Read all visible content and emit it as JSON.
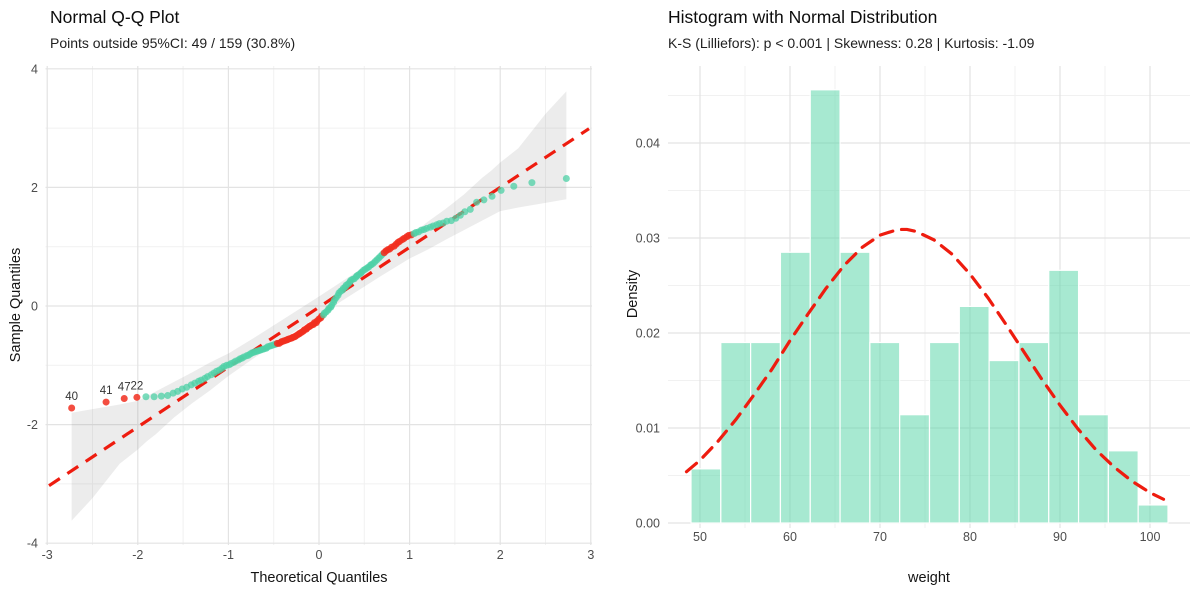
{
  "chart_data": [
    {
      "type": "scatter",
      "name": "qq-plot",
      "title": "Normal Q-Q Plot",
      "subtitle": "Points outside 95%CI: 49 / 159 (30.8%)",
      "xlabel": "Theoretical Quantiles",
      "ylabel": "Sample Quantiles",
      "xlim": [
        -3.05,
        3.05
      ],
      "ylim": [
        -4,
        4
      ],
      "x_ticks": [
        -3,
        -2,
        -1,
        0,
        1,
        2,
        3
      ],
      "y_ticks": [
        4,
        2,
        0,
        -2,
        -4
      ],
      "x_minor": [
        -2.5,
        -1.5,
        -0.5,
        0.5,
        1.5,
        2.5
      ],
      "y_minor": [
        -3,
        -1,
        1,
        3
      ],
      "n_total": 159,
      "n_outside": 49,
      "pct_outside": "30.8%",
      "ref_line": {
        "x1": -2.98,
        "y1": -3.03,
        "x2": 2.98,
        "y2": 2.99
      },
      "band": {
        "x": [
          -2.73,
          -2.5,
          -2.2,
          -2.0,
          -1.9,
          -1.8,
          -1.6,
          -1.4,
          -1.2,
          -1.0,
          -0.7,
          -0.4,
          0.0,
          0.4,
          0.7,
          1.0,
          1.2,
          1.4,
          1.6,
          1.8,
          1.9,
          2.0,
          2.2,
          2.5,
          2.73
        ],
        "upper": [
          -1.8,
          -1.74,
          -1.66,
          -1.6,
          -1.52,
          -1.44,
          -1.28,
          -1.12,
          -0.95,
          -0.8,
          -0.52,
          -0.23,
          0.16,
          0.56,
          0.86,
          1.18,
          1.42,
          1.64,
          1.88,
          2.16,
          2.28,
          2.42,
          2.66,
          3.24,
          3.62
        ],
        "lower": [
          -3.62,
          -3.24,
          -2.66,
          -2.42,
          -2.28,
          -2.16,
          -1.88,
          -1.64,
          -1.42,
          -1.18,
          -0.86,
          -0.56,
          -0.16,
          0.23,
          0.52,
          0.8,
          0.95,
          1.12,
          1.28,
          1.44,
          1.52,
          1.6,
          1.66,
          1.74,
          1.8
        ]
      },
      "outlier_labels": [
        {
          "id": "40",
          "x": -2.73,
          "y": -1.72
        },
        {
          "id": "41",
          "x": -2.35,
          "y": -1.62
        },
        {
          "id": "47",
          "x": -2.15,
          "y": -1.56
        },
        {
          "id": "22",
          "x": -2.01,
          "y": -1.54
        }
      ],
      "points": [
        [
          -2.73,
          -1.72,
          1
        ],
        [
          -2.35,
          -1.62,
          1
        ],
        [
          -2.15,
          -1.56,
          1
        ],
        [
          -2.01,
          -1.54,
          1
        ],
        [
          -1.91,
          -1.53,
          0
        ],
        [
          -1.82,
          -1.53,
          0
        ],
        [
          -1.74,
          -1.52,
          0
        ],
        [
          -1.67,
          -1.51,
          0
        ],
        [
          -1.61,
          -1.47,
          0
        ],
        [
          -1.56,
          -1.44,
          0
        ],
        [
          -1.51,
          -1.4,
          0
        ],
        [
          -1.46,
          -1.37,
          0
        ],
        [
          -1.41,
          -1.33,
          0
        ],
        [
          -1.37,
          -1.3,
          0
        ],
        [
          -1.33,
          -1.27,
          0
        ],
        [
          -1.3,
          -1.25,
          0
        ],
        [
          -1.26,
          -1.22,
          0
        ],
        [
          -1.23,
          -1.19,
          0
        ],
        [
          -1.19,
          -1.16,
          0
        ],
        [
          -1.16,
          -1.13,
          0
        ],
        [
          -1.13,
          -1.1,
          0
        ],
        [
          -1.1,
          -1.08,
          0
        ],
        [
          -1.07,
          -1.05,
          0
        ],
        [
          -1.05,
          -1.02,
          0
        ],
        [
          -1.02,
          -1.0,
          0
        ],
        [
          -0.99,
          -0.99,
          0
        ],
        [
          -0.97,
          -0.97,
          0
        ],
        [
          -0.94,
          -0.95,
          0
        ],
        [
          -0.92,
          -0.93,
          0
        ],
        [
          -0.89,
          -0.91,
          0
        ],
        [
          -0.87,
          -0.89,
          0
        ],
        [
          -0.85,
          -0.88,
          0
        ],
        [
          -0.83,
          -0.86,
          0
        ],
        [
          -0.8,
          -0.84,
          0
        ],
        [
          -0.78,
          -0.83,
          0
        ],
        [
          -0.76,
          -0.81,
          0
        ],
        [
          -0.74,
          -0.79,
          0
        ],
        [
          -0.72,
          -0.78,
          0
        ],
        [
          -0.7,
          -0.77,
          0
        ],
        [
          -0.68,
          -0.76,
          0
        ],
        [
          -0.66,
          -0.75,
          0
        ],
        [
          -0.64,
          -0.74,
          0
        ],
        [
          -0.62,
          -0.73,
          0
        ],
        [
          -0.6,
          -0.72,
          0
        ],
        [
          -0.58,
          -0.71,
          0
        ],
        [
          -0.57,
          -0.69,
          0
        ],
        [
          -0.55,
          -0.68,
          0
        ],
        [
          -0.53,
          -0.67,
          0
        ],
        [
          -0.51,
          -0.66,
          0
        ],
        [
          -0.49,
          -0.65,
          0
        ],
        [
          -0.47,
          -0.64,
          0
        ],
        [
          -0.46,
          -0.63,
          1
        ],
        [
          -0.44,
          -0.63,
          1
        ],
        [
          -0.42,
          -0.61,
          1
        ],
        [
          -0.41,
          -0.6,
          1
        ],
        [
          -0.39,
          -0.59,
          1
        ],
        [
          -0.37,
          -0.58,
          1
        ],
        [
          -0.35,
          -0.57,
          1
        ],
        [
          -0.34,
          -0.56,
          1
        ],
        [
          -0.32,
          -0.55,
          1
        ],
        [
          -0.3,
          -0.54,
          1
        ],
        [
          -0.29,
          -0.53,
          1
        ],
        [
          -0.27,
          -0.52,
          1
        ],
        [
          -0.26,
          -0.51,
          1
        ],
        [
          -0.24,
          -0.49,
          1
        ],
        [
          -0.22,
          -0.47,
          1
        ],
        [
          -0.21,
          -0.46,
          1
        ],
        [
          -0.19,
          -0.44,
          1
        ],
        [
          -0.17,
          -0.42,
          1
        ],
        [
          -0.16,
          -0.4,
          1
        ],
        [
          -0.14,
          -0.39,
          1
        ],
        [
          -0.13,
          -0.37,
          1
        ],
        [
          -0.11,
          -0.35,
          1
        ],
        [
          -0.1,
          -0.34,
          1
        ],
        [
          -0.08,
          -0.32,
          1
        ],
        [
          -0.06,
          -0.31,
          1
        ],
        [
          -0.05,
          -0.28,
          1
        ],
        [
          -0.03,
          -0.28,
          1
        ],
        [
          -0.02,
          -0.25,
          1
        ],
        [
          0.0,
          -0.22,
          1
        ],
        [
          0.02,
          -0.2,
          1
        ],
        [
          0.03,
          -0.17,
          1
        ],
        [
          0.05,
          -0.15,
          0
        ],
        [
          0.06,
          -0.12,
          0
        ],
        [
          0.08,
          -0.1,
          0
        ],
        [
          0.1,
          -0.07,
          0
        ],
        [
          0.11,
          -0.04,
          0
        ],
        [
          0.13,
          -0.02,
          0
        ],
        [
          0.14,
          0.01,
          0
        ],
        [
          0.16,
          0.06,
          0
        ],
        [
          0.17,
          0.1,
          0
        ],
        [
          0.19,
          0.14,
          0
        ],
        [
          0.21,
          0.18,
          0
        ],
        [
          0.22,
          0.22,
          0
        ],
        [
          0.24,
          0.25,
          0
        ],
        [
          0.26,
          0.27,
          0
        ],
        [
          0.27,
          0.3,
          0
        ],
        [
          0.29,
          0.32,
          0
        ],
        [
          0.3,
          0.35,
          0
        ],
        [
          0.32,
          0.37,
          0
        ],
        [
          0.34,
          0.4,
          0
        ],
        [
          0.35,
          0.43,
          0
        ],
        [
          0.37,
          0.45,
          0
        ],
        [
          0.39,
          0.46,
          0
        ],
        [
          0.41,
          0.49,
          0
        ],
        [
          0.42,
          0.51,
          0
        ],
        [
          0.44,
          0.53,
          0
        ],
        [
          0.46,
          0.55,
          0
        ],
        [
          0.47,
          0.57,
          0
        ],
        [
          0.49,
          0.6,
          0
        ],
        [
          0.51,
          0.62,
          0
        ],
        [
          0.53,
          0.64,
          0
        ],
        [
          0.55,
          0.66,
          0
        ],
        [
          0.57,
          0.69,
          0
        ],
        [
          0.58,
          0.7,
          0
        ],
        [
          0.6,
          0.72,
          0
        ],
        [
          0.62,
          0.75,
          0
        ],
        [
          0.64,
          0.78,
          0
        ],
        [
          0.66,
          0.81,
          0
        ],
        [
          0.68,
          0.84,
          0
        ],
        [
          0.7,
          0.87,
          0
        ],
        [
          0.72,
          0.9,
          1
        ],
        [
          0.74,
          0.93,
          1
        ],
        [
          0.76,
          0.95,
          1
        ],
        [
          0.78,
          0.96,
          1
        ],
        [
          0.8,
          0.99,
          1
        ],
        [
          0.83,
          1.01,
          1
        ],
        [
          0.85,
          1.04,
          1
        ],
        [
          0.87,
          1.07,
          1
        ],
        [
          0.89,
          1.09,
          1
        ],
        [
          0.92,
          1.12,
          1
        ],
        [
          0.94,
          1.14,
          1
        ],
        [
          0.97,
          1.17,
          1
        ],
        [
          0.99,
          1.19,
          1
        ],
        [
          1.02,
          1.2,
          1
        ],
        [
          1.05,
          1.22,
          0
        ],
        [
          1.07,
          1.24,
          0
        ],
        [
          1.1,
          1.25,
          0
        ],
        [
          1.13,
          1.28,
          0
        ],
        [
          1.16,
          1.29,
          0
        ],
        [
          1.19,
          1.31,
          0
        ],
        [
          1.23,
          1.33,
          0
        ],
        [
          1.26,
          1.35,
          0
        ],
        [
          1.3,
          1.37,
          0
        ],
        [
          1.33,
          1.39,
          0
        ],
        [
          1.37,
          1.4,
          0
        ],
        [
          1.41,
          1.43,
          0
        ],
        [
          1.46,
          1.44,
          0
        ],
        [
          1.51,
          1.48,
          0
        ],
        [
          1.56,
          1.53,
          0
        ],
        [
          1.61,
          1.59,
          0
        ],
        [
          1.67,
          1.63,
          0
        ],
        [
          1.74,
          1.75,
          0
        ],
        [
          1.82,
          1.79,
          0
        ],
        [
          1.91,
          1.85,
          0
        ],
        [
          2.01,
          1.95,
          0
        ],
        [
          2.15,
          2.02,
          0
        ],
        [
          2.35,
          2.08,
          0
        ],
        [
          2.73,
          2.15,
          0
        ]
      ],
      "colors": {
        "inside": "#4ED0A5",
        "outside": "#F12E1E",
        "line": "#EE1C0F",
        "band": "#7F7F7F"
      }
    },
    {
      "type": "bar",
      "name": "histogram",
      "title": "Histogram with Normal Distribution",
      "subtitle": "K-S (Lilliefors): p < 0.001 | Skewness: 0.28 | Kurtosis: -1.09",
      "stats": {
        "test": "K-S (Lilliefors)",
        "p_value": "p < 0.001",
        "skewness": "0.28",
        "kurtosis": "-1.09"
      },
      "xlabel": "weight",
      "ylabel": "Density",
      "x_ticks": [
        50,
        60,
        70,
        80,
        90,
        100
      ],
      "y_ticks": [
        0,
        0.01,
        0.02,
        0.03,
        0.04
      ],
      "y_tick_labels": [
        "0.00",
        "0.01",
        "0.02",
        "0.03",
        "0.04"
      ],
      "x_minor": [
        55,
        65,
        75,
        85,
        95
      ],
      "y_minor": [
        0.005,
        0.015,
        0.025,
        0.035,
        0.045
      ],
      "bin_start": 49,
      "bin_width": 3.3125,
      "counts": [
        3,
        10,
        10,
        15,
        24,
        15,
        10,
        6,
        10,
        12,
        9,
        10,
        14,
        6,
        4,
        1
      ],
      "densities": [
        0.0057,
        0.019,
        0.019,
        0.0285,
        0.0456,
        0.0285,
        0.019,
        0.0114,
        0.019,
        0.0228,
        0.0171,
        0.019,
        0.0266,
        0.0114,
        0.0076,
        0.0019
      ],
      "normal_fit": {
        "mean": 72.6,
        "sd": 12.87,
        "peak_density": 0.0309
      },
      "curve": {
        "x": [
          48.5,
          50,
          52,
          54,
          56,
          58,
          60,
          62,
          64,
          66,
          68,
          70,
          72,
          73,
          74,
          76,
          78,
          80,
          82,
          84,
          86,
          88,
          90,
          92,
          94,
          96,
          98,
          100,
          101.5
        ],
        "y": [
          0.0054,
          0.0066,
          0.0086,
          0.0109,
          0.0135,
          0.0162,
          0.0192,
          0.022,
          0.0247,
          0.0271,
          0.029,
          0.0303,
          0.0309,
          0.0309,
          0.0307,
          0.0298,
          0.0283,
          0.0262,
          0.0237,
          0.0209,
          0.018,
          0.0151,
          0.0124,
          0.0099,
          0.0077,
          0.0059,
          0.0044,
          0.0032,
          0.0025
        ]
      },
      "colors": {
        "bar": "#5FD7AC",
        "bar_stroke": "#FFFFFF",
        "curve": "#EE1C0F"
      }
    }
  ],
  "theme": {
    "background": "#FFFFFF",
    "grid_major": "#E3E3E3",
    "grid_minor": "#F1F1F1",
    "tick_text": "#4D4D4D",
    "label_text": "#333333"
  }
}
